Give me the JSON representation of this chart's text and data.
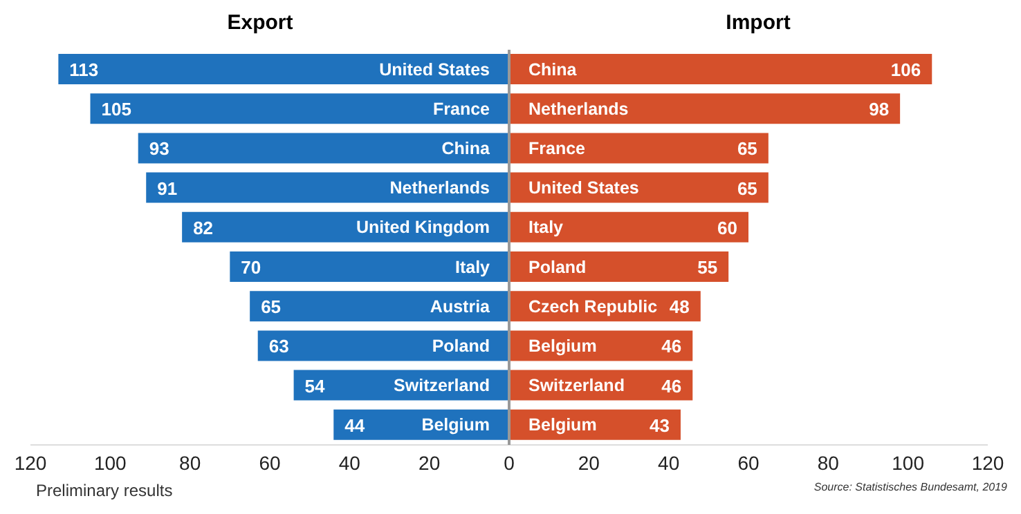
{
  "chart_data": [
    {
      "type": "bar",
      "orientation": "horizontal",
      "title": "Export",
      "categories": [
        "United States",
        "France",
        "China",
        "Netherlands",
        "United Kingdom",
        "Italy",
        "Austria",
        "Poland",
        "Switzerland",
        "Belgium"
      ],
      "values": [
        113,
        105,
        93,
        91,
        82,
        70,
        65,
        63,
        54,
        44
      ],
      "color": "#1f72bd",
      "xlim": [
        120,
        0
      ],
      "xticks": [
        120,
        100,
        80,
        60,
        40,
        20
      ],
      "data_labels": true,
      "annotations": [
        "Preliminary results"
      ]
    },
    {
      "type": "bar",
      "orientation": "horizontal",
      "title": "Import",
      "categories": [
        "China",
        "Netherlands",
        "France",
        "United States",
        "Italy",
        "Poland",
        "Czech Republic",
        "Belgium",
        "Switzerland",
        "Belgium"
      ],
      "values": [
        106,
        98,
        65,
        65,
        60,
        55,
        48,
        46,
        46,
        43
      ],
      "color": "#d5502b",
      "xlim": [
        0,
        120
      ],
      "xticks": [
        0,
        20,
        40,
        60,
        80,
        100,
        120
      ],
      "data_labels": true,
      "annotations": [
        "Source: Statistisches Bundesamt, 2019"
      ]
    }
  ]
}
